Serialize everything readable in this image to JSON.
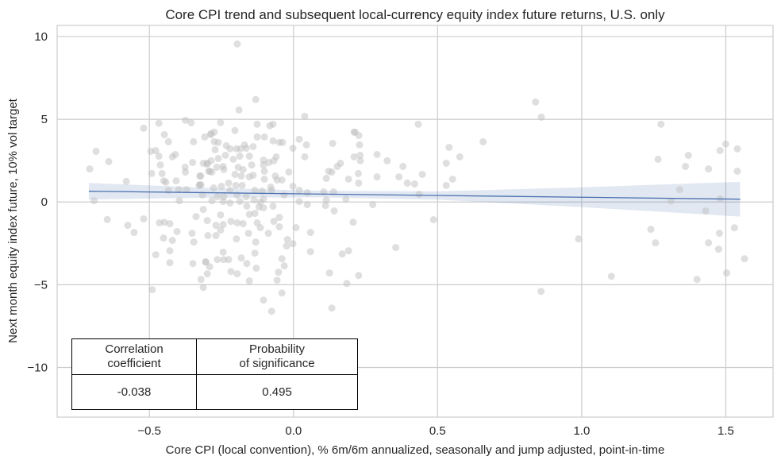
{
  "chart_data": {
    "type": "scatter",
    "title": "Core CPI trend and subsequent local-currency equity index future returns, U.S. only",
    "xlabel": "Core CPI (local convention), % 6m/6m annualized, seasonally and jump adjusted, point-in-time",
    "ylabel": "Next month equity index future, 10% vol target",
    "xlim": [
      -0.82,
      1.664
    ],
    "ylim": [
      -13.0,
      10.67
    ],
    "xticks": [
      -0.5,
      0.0,
      0.5,
      1.0,
      1.5
    ],
    "xtick_labels": [
      "−0.5",
      "0.0",
      "0.5",
      "1.0",
      "1.5"
    ],
    "yticks": [
      -10,
      -5,
      0,
      5,
      10
    ],
    "ytick_labels": [
      "−10",
      "−5",
      "0",
      "5",
      "10"
    ],
    "grid": true,
    "colors": {
      "points": "#c0c0c0",
      "line": "#4c72b0",
      "band": "#4c72b0",
      "grid": "#cccccc"
    },
    "points": [
      [
        0.84,
        6.04
      ],
      [
        0.86,
        5.13
      ],
      [
        1.275,
        4.7
      ],
      [
        1.265,
        2.58
      ],
      [
        1.37,
        2.82
      ],
      [
        1.36,
        2.15
      ],
      [
        1.44,
        2.0
      ],
      [
        1.48,
        3.11
      ],
      [
        1.5,
        3.5
      ],
      [
        1.54,
        3.21
      ],
      [
        1.54,
        1.86
      ],
      [
        1.34,
        0.75
      ],
      [
        1.31,
        0.06
      ],
      [
        1.48,
        0.19
      ],
      [
        1.43,
        -0.54
      ],
      [
        1.53,
        -1.56
      ],
      [
        1.24,
        -1.65
      ],
      [
        1.256,
        -2.47
      ],
      [
        1.478,
        -1.89
      ],
      [
        1.44,
        -2.47
      ],
      [
        1.475,
        -2.85
      ],
      [
        1.565,
        -3.43
      ],
      [
        1.503,
        -4.29
      ],
      [
        1.4,
        -4.68
      ],
      [
        1.103,
        -4.49
      ],
      [
        0.989,
        -2.23
      ],
      [
        0.859,
        -5.4
      ],
      [
        0.658,
        3.64
      ],
      [
        0.54,
        3.3
      ],
      [
        0.577,
        2.73
      ],
      [
        0.53,
        2.34
      ],
      [
        0.552,
        1.38
      ],
      [
        0.53,
        1.0
      ],
      [
        0.486,
        -1.07
      ],
      [
        0.433,
        4.7
      ],
      [
        0.436,
        0.47
      ],
      [
        0.447,
        1.67
      ],
      [
        0.42,
        1.09
      ],
      [
        0.395,
        1.14
      ],
      [
        0.38,
        2.15
      ],
      [
        0.366,
        1.52
      ],
      [
        0.325,
        2.49
      ],
      [
        0.29,
        2.87
      ],
      [
        0.29,
        1.52
      ],
      [
        0.275,
        -0.16
      ],
      [
        0.355,
        -2.75
      ],
      [
        0.226,
        -4.44
      ],
      [
        0.207,
        -1.22
      ],
      [
        0.214,
        4.22
      ],
      [
        0.227,
        4.02
      ],
      [
        0.229,
        3.45
      ],
      [
        0.231,
        2.82
      ],
      [
        0.21,
        2.73
      ],
      [
        0.232,
        2.49
      ],
      [
        0.225,
        1.72
      ],
      [
        0.226,
        1.14
      ],
      [
        -0.685,
        3.06
      ],
      [
        -0.641,
        2.44
      ],
      [
        -0.707,
        2.0
      ],
      [
        -0.52,
        4.46
      ],
      [
        -0.58,
        1.24
      ],
      [
        -0.692,
        0.08
      ],
      [
        -0.646,
        -1.06
      ],
      [
        -0.575,
        -1.41
      ],
      [
        -0.553,
        -1.84
      ],
      [
        -0.52,
        -1.02
      ],
      [
        -0.49,
        -5.3
      ],
      [
        -0.478,
        -3.19
      ],
      [
        -0.467,
        4.76
      ],
      [
        -0.448,
        4.07
      ],
      [
        -0.434,
        3.64
      ],
      [
        -0.495,
        3.06
      ],
      [
        -0.478,
        3.11
      ],
      [
        -0.467,
        2.77
      ],
      [
        -0.462,
        2.24
      ],
      [
        -0.492,
        1.72
      ],
      [
        -0.456,
        1.72
      ],
      [
        -0.45,
        1.28
      ],
      [
        -0.443,
        1.19
      ],
      [
        -0.434,
        0.71
      ],
      [
        -0.407,
        1.28
      ],
      [
        -0.396,
        0.08
      ],
      [
        -0.42,
        2.73
      ],
      [
        -0.41,
        2.87
      ],
      [
        -0.375,
        4.94
      ],
      [
        -0.355,
        4.79
      ],
      [
        -0.347,
        3.64
      ],
      [
        -0.376,
        2.1
      ],
      [
        -0.375,
        1.81
      ],
      [
        -0.35,
        2.39
      ],
      [
        -0.398,
        0.75
      ],
      [
        -0.371,
        0.75
      ],
      [
        -0.325,
        1.57
      ],
      [
        -0.325,
        1.04
      ],
      [
        -0.316,
        0.42
      ],
      [
        -0.313,
        -0.45
      ],
      [
        -0.338,
        -0.88
      ],
      [
        -0.299,
        -1.12
      ],
      [
        -0.465,
        -1.26
      ],
      [
        -0.448,
        -1.22
      ],
      [
        -0.429,
        -1.31
      ],
      [
        -0.404,
        -1.79
      ],
      [
        -0.451,
        -2.18
      ],
      [
        -0.42,
        -2.32
      ],
      [
        -0.429,
        -2.95
      ],
      [
        -0.429,
        -3.67
      ],
      [
        -0.352,
        -1.89
      ],
      [
        -0.346,
        -2.42
      ],
      [
        -0.349,
        -3.72
      ],
      [
        -0.305,
        -3.62
      ],
      [
        -0.291,
        -3.91
      ],
      [
        -0.299,
        -4.34
      ],
      [
        -0.321,
        -4.68
      ],
      [
        -0.313,
        -5.16
      ],
      [
        -0.297,
        -2.03
      ],
      [
        -0.308,
        3.93
      ],
      [
        -0.288,
        4.07
      ],
      [
        -0.286,
        2.49
      ],
      [
        -0.3,
        2.29
      ],
      [
        -0.294,
        1.86
      ],
      [
        -0.283,
        1.81
      ],
      [
        -0.327,
        1.0
      ],
      [
        -0.283,
        0.08
      ],
      [
        -0.195,
        9.55
      ],
      [
        -0.131,
        6.19
      ],
      [
        -0.189,
        5.56
      ],
      [
        0.039,
        5.18
      ],
      [
        -0.253,
        4.8
      ],
      [
        -0.126,
        4.7
      ],
      [
        -0.082,
        4.61
      ],
      [
        -0.071,
        4.7
      ],
      [
        -0.203,
        4.32
      ],
      [
        -0.286,
        4.13
      ],
      [
        -0.275,
        4.22
      ],
      [
        -0.275,
        3.64
      ],
      [
        -0.261,
        3.6
      ],
      [
        -0.272,
        3.16
      ],
      [
        -0.233,
        3.4
      ],
      [
        -0.22,
        3.21
      ],
      [
        -0.198,
        3.21
      ],
      [
        -0.184,
        3.21
      ],
      [
        -0.17,
        3.45
      ],
      [
        -0.164,
        3.25
      ],
      [
        -0.14,
        3.35
      ],
      [
        -0.126,
        3.93
      ],
      [
        -0.101,
        3.93
      ],
      [
        -0.071,
        3.69
      ],
      [
        -0.049,
        3.6
      ],
      [
        -0.038,
        3.6
      ],
      [
        -0.002,
        3.25
      ],
      [
        0.02,
        3.79
      ],
      [
        0.045,
        3.45
      ],
      [
        0.039,
        2.73
      ],
      [
        0.136,
        3.54
      ],
      [
        -0.236,
        2.82
      ],
      [
        -0.261,
        2.63
      ],
      [
        -0.209,
        2.58
      ],
      [
        -0.186,
        2.77
      ],
      [
        -0.153,
        2.77
      ],
      [
        -0.06,
        2.73
      ],
      [
        -0.313,
        2.34
      ],
      [
        -0.299,
        2.34
      ],
      [
        -0.266,
        2.1
      ],
      [
        -0.244,
        2.15
      ],
      [
        -0.242,
        1.96
      ],
      [
        -0.291,
        1.86
      ],
      [
        -0.322,
        1.57
      ],
      [
        -0.203,
        1.67
      ],
      [
        -0.192,
        2.1
      ],
      [
        -0.175,
        1.96
      ],
      [
        -0.181,
        1.57
      ],
      [
        -0.145,
        2.24
      ],
      [
        -0.14,
        1.62
      ],
      [
        -0.153,
        1.52
      ],
      [
        -0.104,
        2.53
      ],
      [
        -0.085,
        2.39
      ],
      [
        -0.104,
        2.24
      ],
      [
        -0.101,
        1.86
      ],
      [
        -0.068,
        2.49
      ],
      [
        -0.101,
        1.38
      ],
      [
        -0.063,
        1.57
      ],
      [
        -0.057,
        1.33
      ],
      [
        -0.04,
        1.33
      ],
      [
        -0.016,
        1.81
      ],
      [
        -0.321,
        1.04
      ],
      [
        -0.225,
        1.14
      ],
      [
        -0.2,
        1.0
      ],
      [
        -0.25,
        0.95
      ],
      [
        -0.277,
        0.85
      ],
      [
        -0.178,
        1.0
      ],
      [
        -0.079,
        0.9
      ],
      [
        -0.002,
        0.95
      ],
      [
        -0.264,
        0.32
      ],
      [
        -0.242,
        0.32
      ],
      [
        -0.22,
        0.71
      ],
      [
        -0.196,
        0.42
      ],
      [
        -0.164,
        0.32
      ],
      [
        -0.134,
        0.71
      ],
      [
        -0.109,
        0.66
      ],
      [
        -0.076,
        0.71
      ],
      [
        -0.032,
        0.42
      ],
      [
        0.02,
        0.71
      ],
      [
        0.048,
        0.56
      ],
      [
        0.105,
        0.61
      ],
      [
        0.139,
        0.61
      ],
      [
        -0.244,
        0.03
      ],
      [
        -0.22,
        -0.06
      ],
      [
        -0.186,
        0.03
      ],
      [
        -0.137,
        0.13
      ],
      [
        -0.115,
        -0.01
      ],
      [
        -0.104,
        0.18
      ],
      [
        0.02,
        0.03
      ],
      [
        0.048,
        -0.16
      ],
      [
        0.114,
        0.13
      ],
      [
        0.111,
        -0.21
      ],
      [
        0.141,
        -0.54
      ],
      [
        0.182,
        0.18
      ],
      [
        -0.253,
        -0.78
      ],
      [
        -0.162,
        -0.25
      ],
      [
        -0.153,
        -0.74
      ],
      [
        -0.134,
        -0.69
      ],
      [
        -0.12,
        -0.3
      ],
      [
        -0.104,
        -0.35
      ],
      [
        -0.071,
        -0.25
      ],
      [
        -0.244,
        -1.36
      ],
      [
        -0.269,
        -1.41
      ],
      [
        -0.253,
        -1.7
      ],
      [
        -0.217,
        -1.17
      ],
      [
        -0.195,
        -1.26
      ],
      [
        -0.175,
        -1.31
      ],
      [
        -0.126,
        -1.26
      ],
      [
        -0.115,
        -1.55
      ],
      [
        -0.068,
        -1.17
      ],
      [
        -0.049,
        -0.93
      ],
      [
        -0.049,
        -1.5
      ],
      [
        0.009,
        -1.55
      ],
      [
        0.059,
        -1.84
      ],
      [
        -0.269,
        -2.03
      ],
      [
        -0.198,
        -2.23
      ],
      [
        -0.156,
        -1.89
      ],
      [
        -0.131,
        -2.42
      ],
      [
        -0.087,
        -1.89
      ],
      [
        -0.021,
        -2.27
      ],
      [
        -0.024,
        -2.66
      ],
      [
        -0.002,
        -2.52
      ],
      [
        0.059,
        -3.0
      ],
      [
        -0.244,
        -3.03
      ],
      [
        -0.134,
        -3.09
      ],
      [
        -0.264,
        -3.48
      ],
      [
        -0.242,
        -3.48
      ],
      [
        -0.225,
        -3.48
      ],
      [
        -0.181,
        -3.38
      ],
      [
        -0.04,
        -3.43
      ],
      [
        -0.304,
        -3.62
      ],
      [
        -0.162,
        -3.72
      ],
      [
        -0.032,
        -3.86
      ],
      [
        -0.129,
        -4.0
      ],
      [
        -0.217,
        -4.2
      ],
      [
        -0.195,
        -4.34
      ],
      [
        -0.052,
        -4.24
      ],
      [
        -0.153,
        -4.77
      ],
      [
        -0.057,
        -4.73
      ],
      [
        0.125,
        -4.29
      ],
      [
        0.169,
        -3.14
      ],
      [
        0.191,
        -2.95
      ],
      [
        0.185,
        -4.92
      ],
      [
        -0.04,
        -5.5
      ],
      [
        -0.104,
        -5.93
      ],
      [
        -0.076,
        -6.6
      ],
      [
        0.133,
        -6.41
      ],
      [
        0.114,
        1.43
      ],
      [
        0.122,
        1.86
      ],
      [
        0.133,
        1.81
      ],
      [
        0.152,
        2.15
      ],
      [
        0.163,
        2.34
      ],
      [
        0.191,
        1.38
      ],
      [
        0.21,
        4.22
      ]
    ],
    "regression": {
      "x": [
        -0.71,
        1.55
      ],
      "y": [
        0.65,
        0.17
      ],
      "ci_x": [
        -0.71,
        -0.3,
        0.1,
        0.5,
        1.0,
        1.55
      ],
      "ci_lower": [
        0.15,
        0.26,
        0.28,
        0.14,
        -0.31,
        -0.88
      ],
      "ci_upper": [
        1.15,
        0.86,
        0.68,
        0.64,
        0.89,
        1.22
      ]
    }
  },
  "stats_table": {
    "headers": [
      [
        "Correlation",
        "coefficient"
      ],
      [
        "Probability",
        "of significance"
      ]
    ],
    "values": [
      "-0.038",
      "0.495"
    ]
  }
}
